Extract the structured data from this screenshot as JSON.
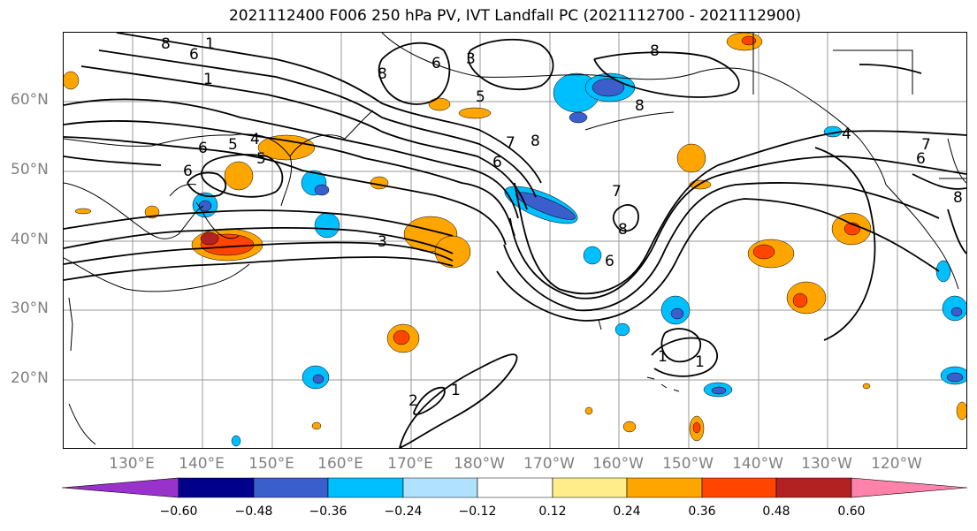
{
  "title": "2021112400 F006 250 hPa PV, IVT Landfall PC (2021112700 - 2021112900)",
  "latitude_labels": [
    "60°N",
    "50°N",
    "40°N",
    "30°N",
    "20°N"
  ],
  "longitude_labels": [
    "130°E",
    "140°E",
    "150°E",
    "160°E",
    "170°E",
    "180°W",
    "170°W",
    "160°W",
    "150°W",
    "140°W",
    "130°W",
    "120°W"
  ],
  "colorbar": {
    "colors": [
      "#9932cc",
      "#00008b",
      "#3a5fcd",
      "#00bfff",
      "#b0e2ff",
      "#ffffff",
      "#ffec8b",
      "#ffa500",
      "#ff4500",
      "#b22222",
      "#ff82ab"
    ],
    "tick_labels": [
      "−0.60",
      "−0.48",
      "−0.36",
      "−0.24",
      "−0.12",
      "0.12",
      "0.24",
      "0.36",
      "0.48",
      "0.60"
    ]
  },
  "contour_labels": [
    "8",
    "6",
    "1",
    "1",
    "8",
    "6",
    "5",
    "3",
    "8",
    "5",
    "4",
    "6",
    "5",
    "7",
    "6",
    "8",
    "6",
    "3",
    "8",
    "6",
    "7",
    "8",
    "4",
    "7",
    "6",
    "8",
    "1",
    "2",
    "1",
    "1"
  ]
}
